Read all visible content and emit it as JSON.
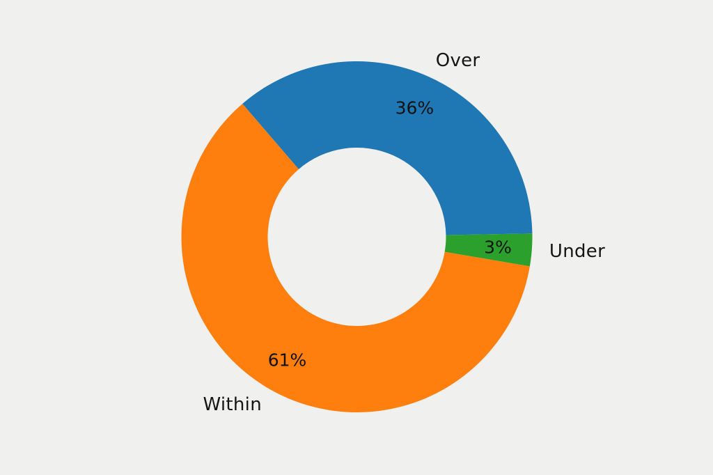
{
  "canvas": {
    "background_color": "#f0f0ef",
    "text_color": "#151515"
  },
  "chart_data": {
    "type": "pie",
    "subtype": "donut",
    "title": "",
    "legend_position": "none",
    "segments": [
      {
        "label": "Over",
        "value": 36,
        "pct_label": "36%",
        "color": "#1f77b4"
      },
      {
        "label": "Under",
        "value": 3,
        "pct_label": "3%",
        "color": "#2ca02c"
      },
      {
        "label": "Within",
        "value": 61,
        "pct_label": "61%",
        "color": "#ff7f0e"
      }
    ],
    "layout": {
      "start_angle_deg": 130.7,
      "direction": "clockwise",
      "donut_hole_ratio": 0.508,
      "outer_label_radius_ratio": 1.1,
      "pct_label_radius_ratio": 0.806
    }
  }
}
